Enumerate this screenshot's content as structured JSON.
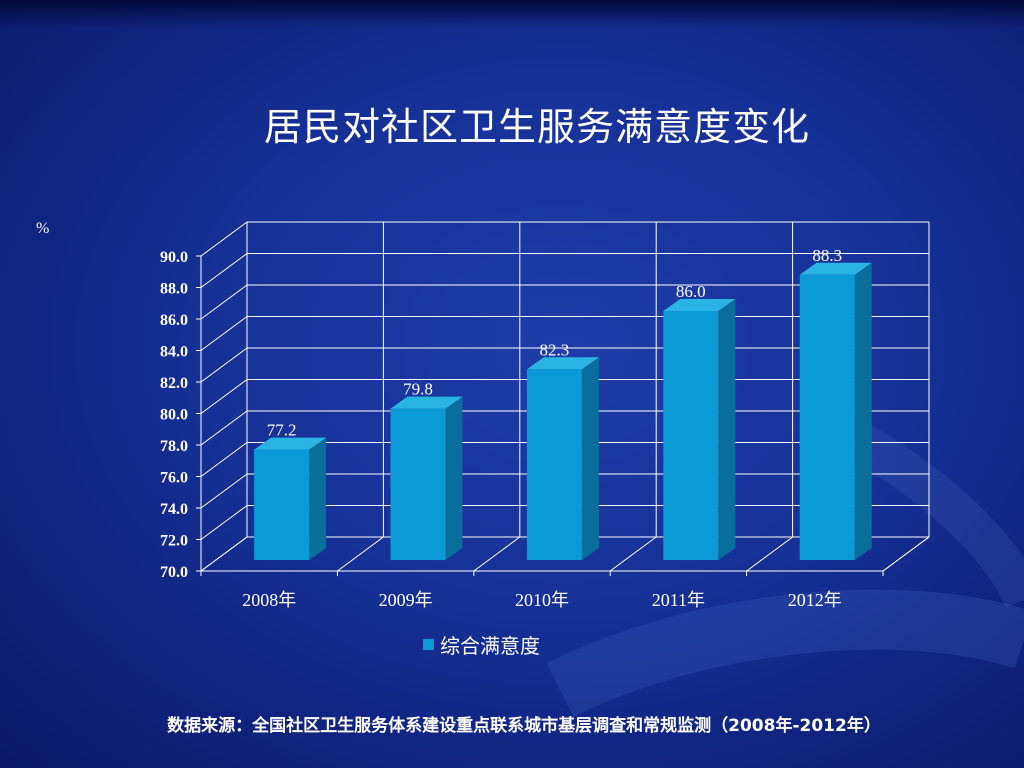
{
  "slide": {
    "title": "居民对社区卫生服务满意度变化",
    "unit": "%",
    "source": "数据来源：全国社区卫生服务体系建设重点联系城市基层调查和常规监测（2008年-2012年）"
  },
  "colors": {
    "bar_front": "#0b9ad6",
    "bar_side": "#0a6e9c",
    "bar_top": "#2ab4e6",
    "grid": "#ffffff"
  },
  "chart_data": {
    "type": "bar",
    "title": "居民对社区卫生服务满意度变化",
    "ylabel": "%",
    "xlabel": "",
    "categories": [
      "2008年",
      "2009年",
      "2010年",
      "2011年",
      "2012年"
    ],
    "series": [
      {
        "name": "综合满意度",
        "values": [
          77.2,
          79.8,
          82.3,
          86.0,
          88.3
        ]
      }
    ],
    "value_labels": [
      "77.2",
      "79.8",
      "82.3",
      "86.0",
      "88.3"
    ],
    "ylim": [
      70,
      90
    ],
    "yticks": [
      "70.0",
      "72.0",
      "74.0",
      "76.0",
      "78.0",
      "80.0",
      "82.0",
      "84.0",
      "86.0",
      "88.0",
      "90.0"
    ],
    "grid": true,
    "legend": "bottom",
    "style": "3d-column"
  }
}
